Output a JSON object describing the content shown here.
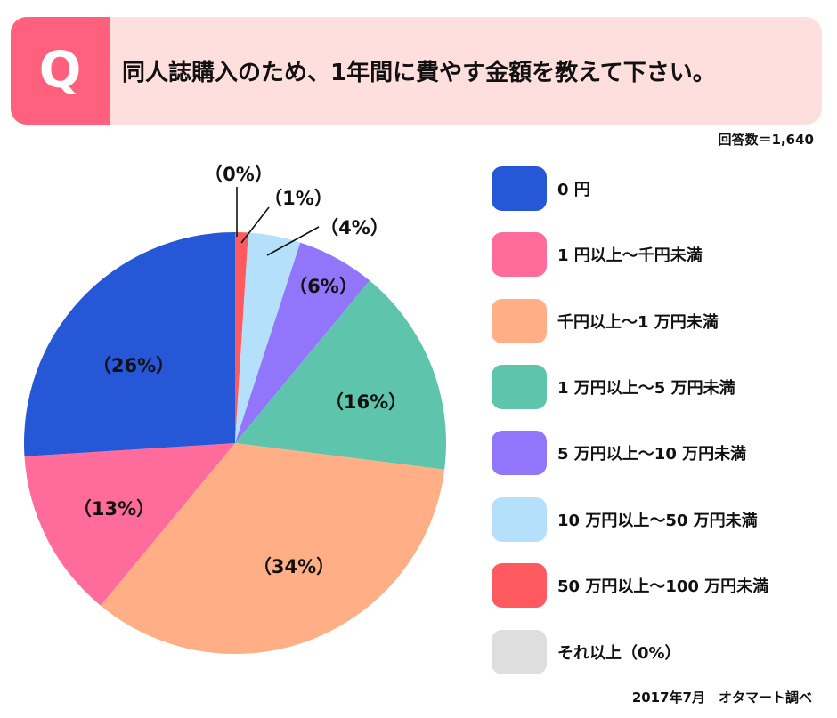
{
  "header": {
    "q_letter": "Q",
    "question": "同人誌購入のため、1年間に費やす金額を教えて下さい。",
    "accent_color": "#FF607D",
    "background_color": "#FFDEDE"
  },
  "respondents": "回答数＝1,640",
  "source": "2017年7月　オタマート調べ",
  "chart_data": {
    "type": "pie",
    "title": "同人誌購入のため、1年間に費やす金額を教えて下さい。",
    "n": 1640,
    "start_angle_deg": 0,
    "direction": "clockwise",
    "categories": [
      "50 万円以上～100 万円未満",
      "10 万円以上～50 万円未満",
      "5 万円以上～10 万円未満",
      "1 万円以上～5 万円未満",
      "千円以上～1 万円未満",
      "1 円以上～千円未満",
      "0 円",
      "それ以上"
    ],
    "values": [
      1,
      4,
      6,
      16,
      34,
      13,
      26,
      0
    ],
    "labels": [
      "（1%）",
      "（4%）",
      "（6%）",
      "（16%）",
      "（34%）",
      "（13%）",
      "（26%）",
      "（0%）"
    ],
    "colors": [
      "#FF5A5F",
      "#B5E0FC",
      "#9176FB",
      "#5EC5AC",
      "#FFAE85",
      "#FF6B9A",
      "#2557D6",
      "#DEDEDE"
    ],
    "legend_position": "right"
  },
  "pie_labels": {
    "p0": "（0%）",
    "p1": "（1%）",
    "p4": "（4%）",
    "p6": "（6%）",
    "p16": "（16%）",
    "p34": "（34%）",
    "p13": "（13%）",
    "p26": "（26%）"
  },
  "legend": {
    "items": [
      {
        "label": "0 円",
        "color": "#2557D6"
      },
      {
        "label": "1 円以上～千円未満",
        "color": "#FF6B9A"
      },
      {
        "label": "千円以上～1 万円未満",
        "color": "#FFAE85"
      },
      {
        "label": "1 万円以上～5 万円未満",
        "color": "#5EC5AC"
      },
      {
        "label": "5 万円以上～10 万円未満",
        "color": "#9176FB"
      },
      {
        "label": "10 万円以上～50 万円未満",
        "color": "#B5E0FC"
      },
      {
        "label": "50 万円以上～100 万円未満",
        "color": "#FF5A5F"
      },
      {
        "label": "それ以上（0%）",
        "color": "#DEDEDE"
      }
    ]
  }
}
